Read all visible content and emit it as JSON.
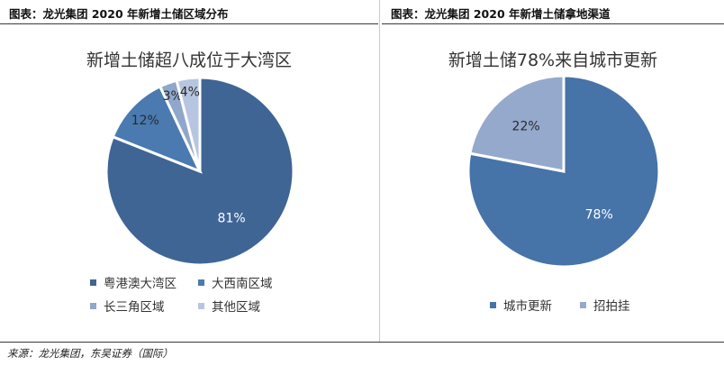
{
  "left": {
    "header": "图表：龙光集团 2020 年新增土储区域分布",
    "chart_title": "新增土储超八成位于大湾区"
  },
  "right": {
    "header": "图表：龙光集团 2020 年新增土储拿地渠道",
    "chart_title": "新增土储78%来自城市更新"
  },
  "source": "来源：龙光集团，东吴证券（国际）",
  "chart_data": [
    {
      "type": "pie",
      "title": "新增土储超八成位于大湾区",
      "categories": [
        "粤港澳大湾区",
        "大西南区域",
        "长三角区域",
        "其他区域"
      ],
      "values": [
        81,
        12,
        3,
        4
      ],
      "labels": [
        "81%",
        "12%",
        "3%",
        "4%"
      ],
      "colors": [
        "#3f6595",
        "#4a7ab0",
        "#8fa7cb",
        "#b7c6e0"
      ],
      "legend_position": "bottom"
    },
    {
      "type": "pie",
      "title": "新增土储78%来自城市更新",
      "categories": [
        "城市更新",
        "招拍挂"
      ],
      "values": [
        78,
        22
      ],
      "labels": [
        "78%",
        "22%"
      ],
      "colors": [
        "#4673a8",
        "#95a9cd"
      ],
      "legend_position": "bottom"
    }
  ]
}
